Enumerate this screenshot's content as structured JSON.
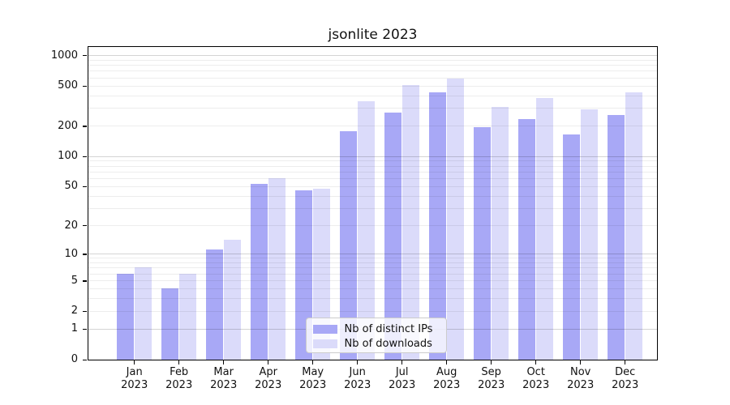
{
  "title": "jsonlite 2023",
  "legend": {
    "items": [
      {
        "label": "Nb of distinct IPs",
        "color": "#a8a8f6"
      },
      {
        "label": "Nb of downloads",
        "color": "#dbdbfa"
      }
    ]
  },
  "axes": {
    "y_ticks": [
      {
        "value": 0,
        "label": "0"
      },
      {
        "value": 1,
        "label": "1"
      },
      {
        "value": 2,
        "label": "2"
      },
      {
        "value": 5,
        "label": "5"
      },
      {
        "value": 10,
        "label": "10"
      },
      {
        "value": 20,
        "label": "20"
      },
      {
        "value": 50,
        "label": "50"
      },
      {
        "value": 100,
        "label": "100"
      },
      {
        "value": 200,
        "label": "200"
      },
      {
        "value": 500,
        "label": "500"
      },
      {
        "value": 1000,
        "label": "1000"
      }
    ],
    "minor_grid_values": [
      2,
      3,
      4,
      5,
      6,
      7,
      8,
      9,
      20,
      30,
      40,
      50,
      60,
      70,
      80,
      90,
      200,
      300,
      400,
      500,
      600,
      700,
      800,
      900
    ],
    "major_grid_values": [
      1,
      10,
      100,
      1000
    ],
    "x_months": [
      "Jan",
      "Feb",
      "Mar",
      "Apr",
      "May",
      "Jun",
      "Jul",
      "Aug",
      "Sep",
      "Oct",
      "Nov",
      "Dec"
    ],
    "x_year": "2023"
  },
  "chart_data": {
    "type": "bar",
    "title": "jsonlite 2023",
    "categories": [
      "Jan 2023",
      "Feb 2023",
      "Mar 2023",
      "Apr 2023",
      "May 2023",
      "Jun 2023",
      "Jul 2023",
      "Aug 2023",
      "Sep 2023",
      "Oct 2023",
      "Nov 2023",
      "Dec 2023"
    ],
    "series": [
      {
        "name": "Nb of distinct IPs",
        "color": "#a8a8f6",
        "values": [
          6,
          4,
          11,
          53,
          45,
          177,
          268,
          425,
          192,
          235,
          165,
          257
        ]
      },
      {
        "name": "Nb of downloads",
        "color": "#dbdbfa",
        "values": [
          7,
          6,
          14,
          60,
          47,
          353,
          510,
          590,
          310,
          375,
          290,
          428
        ]
      }
    ],
    "yscale": "log1p",
    "ylim": [
      0,
      1000
    ],
    "y_tick_values": [
      0,
      1,
      2,
      5,
      10,
      20,
      50,
      100,
      200,
      500,
      1000
    ],
    "grid": "horizontal, minor and major",
    "legend_position": "lower center"
  }
}
